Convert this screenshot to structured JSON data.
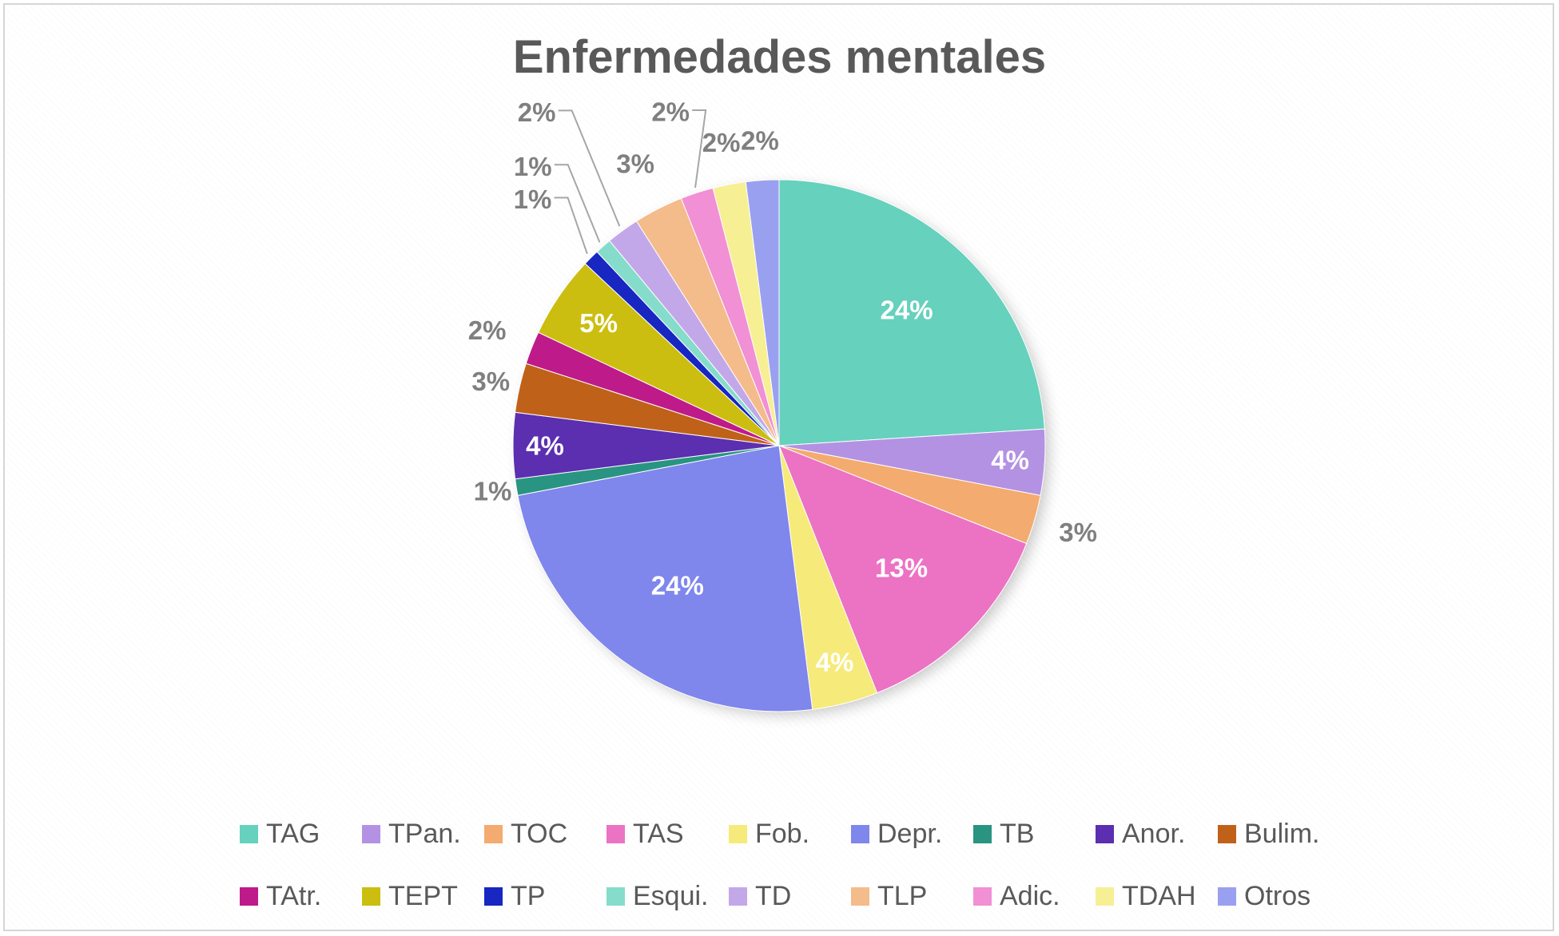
{
  "chart_data": {
    "type": "pie",
    "title": "Enfermedades mentales",
    "series": [
      {
        "name": "TAG",
        "value": 24,
        "label": "24%",
        "color": "#66d1bd"
      },
      {
        "name": "TPan.",
        "value": 4,
        "label": "4%",
        "color": "#b392e3"
      },
      {
        "name": "TOC",
        "value": 3,
        "label": "3%",
        "color": "#f3ab6f"
      },
      {
        "name": "TAS",
        "value": 13,
        "label": "13%",
        "color": "#ec72c4"
      },
      {
        "name": "Fob.",
        "value": 4,
        "label": "4%",
        "color": "#f6ea7a"
      },
      {
        "name": "Depr.",
        "value": 24,
        "label": "24%",
        "color": "#7f86ec"
      },
      {
        "name": "TB",
        "value": 1,
        "label": "1%",
        "color": "#2a9482"
      },
      {
        "name": "Anor.",
        "value": 4,
        "label": "4%",
        "color": "#5b2fb0"
      },
      {
        "name": "Bulim.",
        "value": 3,
        "label": "3%",
        "color": "#c0611a"
      },
      {
        "name": "TAtr.",
        "value": 2,
        "label": "2%",
        "color": "#be1a8a"
      },
      {
        "name": "TEPT",
        "value": 5,
        "label": "5%",
        "color": "#cbbe10"
      },
      {
        "name": "TP",
        "value": 1,
        "label": "1%",
        "color": "#1826c2"
      },
      {
        "name": "Esqui.",
        "value": 1,
        "label": "1%",
        "color": "#86dccb"
      },
      {
        "name": "TD",
        "value": 2,
        "label": "2%",
        "color": "#c3a8e9"
      },
      {
        "name": "TLP",
        "value": 3,
        "label": "3%",
        "color": "#f4bb8b"
      },
      {
        "name": "Adic.",
        "value": 2,
        "label": "2%",
        "color": "#f190d4"
      },
      {
        "name": "TDAH",
        "value": 2,
        "label": "2%",
        "color": "#f7ef94"
      },
      {
        "name": "Otros",
        "value": 2,
        "label": "2%",
        "color": "#9aa0f0"
      }
    ],
    "legend_position": "bottom"
  }
}
